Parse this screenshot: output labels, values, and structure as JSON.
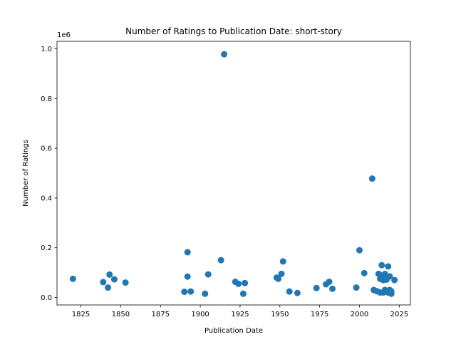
{
  "chart_data": {
    "type": "scatter",
    "title": "Number of Ratings to Publication Date: short-story",
    "xlabel": "Publication Date",
    "ylabel": "Number of Ratings",
    "y_offset_label": "1e6",
    "xlim": [
      1810,
      2032
    ],
    "ylim": [
      -0.03,
      1.03
    ],
    "y_scale": 1000000,
    "xticks": [
      1825,
      1850,
      1875,
      1900,
      1925,
      1950,
      1975,
      2000,
      2025
    ],
    "xtick_labels": [
      "1825",
      "1850",
      "1875",
      "1900",
      "1925",
      "1950",
      "1975",
      "2000",
      "2025"
    ],
    "yticks": [
      0.0,
      0.2,
      0.4,
      0.6,
      0.8,
      1.0
    ],
    "ytick_labels": [
      "0.0",
      "0.2",
      "0.4",
      "0.6",
      "0.8",
      "1.0"
    ],
    "grid": false,
    "marker_color": "#1f77b4",
    "points": [
      [
        1820,
        75000
      ],
      [
        1839,
        62000
      ],
      [
        1842,
        40000
      ],
      [
        1843,
        92000
      ],
      [
        1846,
        73000
      ],
      [
        1853,
        60000
      ],
      [
        1890,
        23000
      ],
      [
        1892,
        182000
      ],
      [
        1892,
        84000
      ],
      [
        1894,
        24000
      ],
      [
        1903,
        15000
      ],
      [
        1905,
        93000
      ],
      [
        1913,
        150000
      ],
      [
        1915,
        978000
      ],
      [
        1922,
        63000
      ],
      [
        1924,
        55000
      ],
      [
        1927,
        15000
      ],
      [
        1928,
        58000
      ],
      [
        1948,
        80000
      ],
      [
        1949,
        75000
      ],
      [
        1951,
        95000
      ],
      [
        1952,
        145000
      ],
      [
        1956,
        24000
      ],
      [
        1961,
        18000
      ],
      [
        1973,
        38000
      ],
      [
        1979,
        53000
      ],
      [
        1981,
        63000
      ],
      [
        1983,
        35000
      ],
      [
        1998,
        40000
      ],
      [
        2000,
        190000
      ],
      [
        2003,
        98000
      ],
      [
        2008,
        478000
      ],
      [
        2009,
        30000
      ],
      [
        2011,
        25000
      ],
      [
        2012,
        95000
      ],
      [
        2013,
        20000
      ],
      [
        2013,
        75000
      ],
      [
        2014,
        130000
      ],
      [
        2014,
        88000
      ],
      [
        2015,
        20000
      ],
      [
        2015,
        70000
      ],
      [
        2016,
        30000
      ],
      [
        2016,
        95000
      ],
      [
        2017,
        25000
      ],
      [
        2017,
        72000
      ],
      [
        2018,
        125000
      ],
      [
        2018,
        20000
      ],
      [
        2019,
        30000
      ],
      [
        2019,
        85000
      ],
      [
        2020,
        15000
      ],
      [
        2020,
        25000
      ],
      [
        2022,
        70000
      ]
    ]
  }
}
